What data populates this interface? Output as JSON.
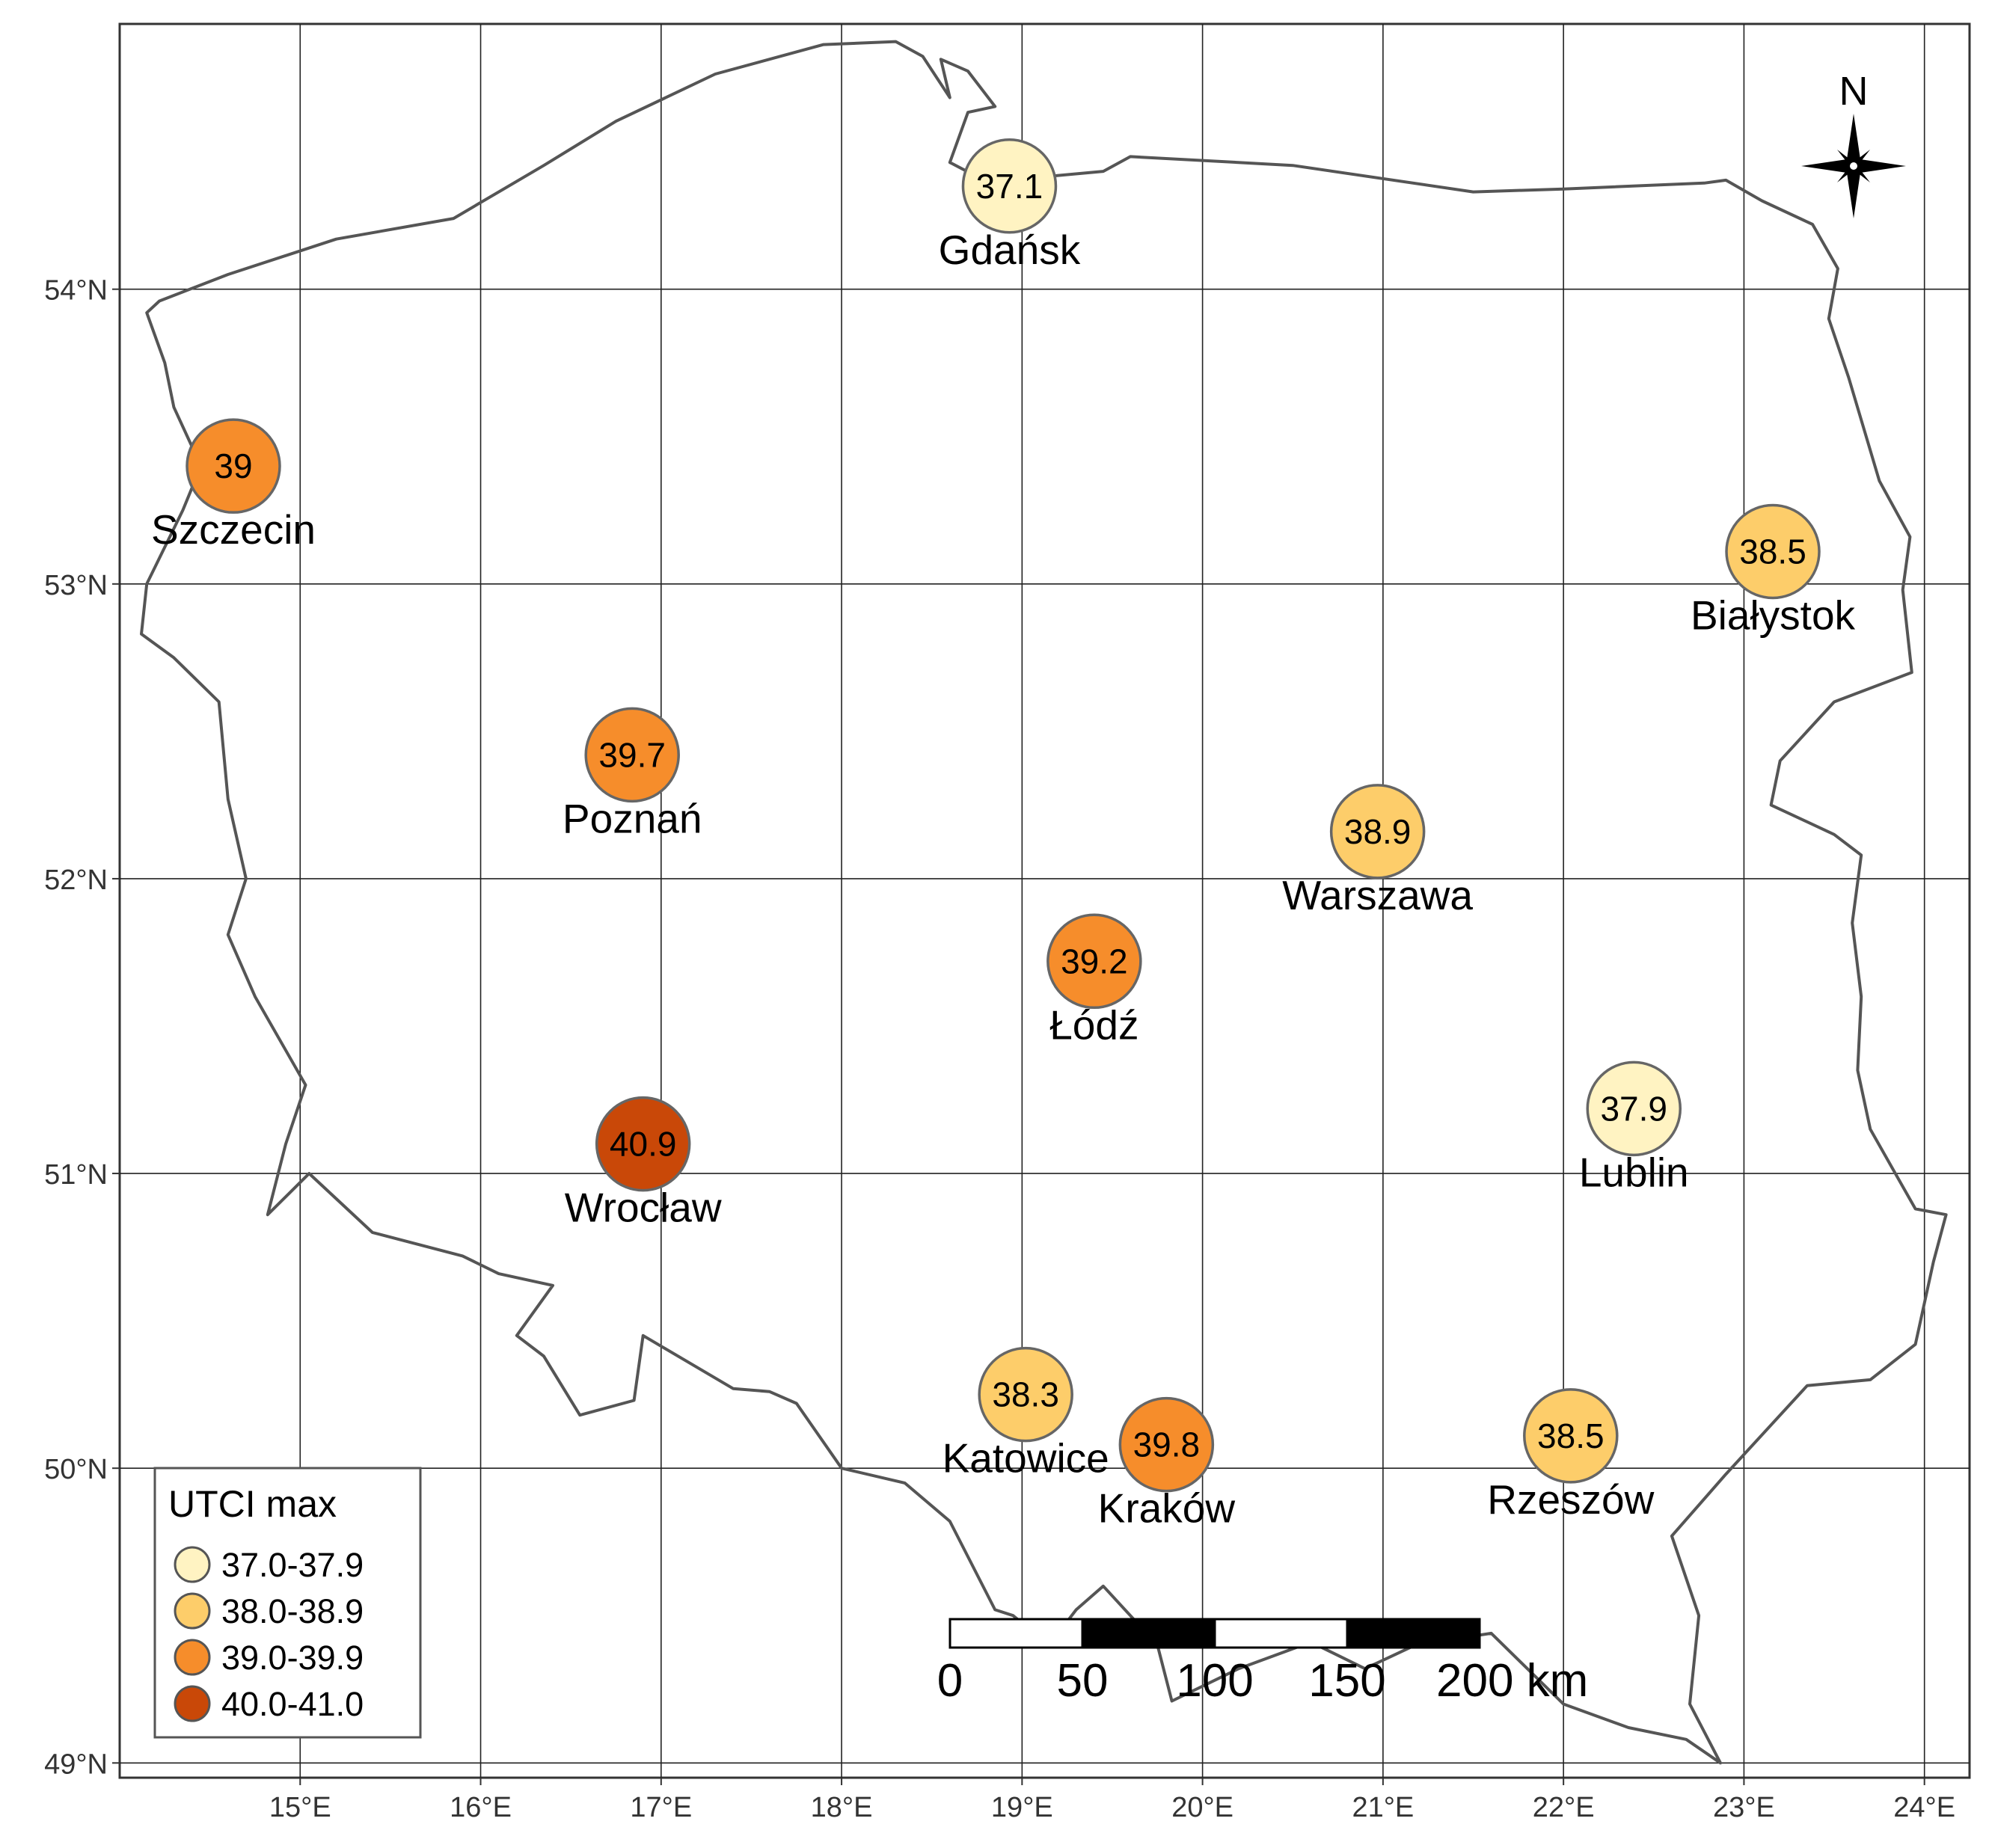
{
  "map": {
    "lon_range": [
      14.0,
      24.25
    ],
    "lat_range": [
      48.95,
      54.9
    ],
    "x_ticks": [
      {
        "lon": 15,
        "label": "15°E"
      },
      {
        "lon": 16,
        "label": "16°E"
      },
      {
        "lon": 17,
        "label": "17°E"
      },
      {
        "lon": 18,
        "label": "18°E"
      },
      {
        "lon": 19,
        "label": "19°E"
      },
      {
        "lon": 20,
        "label": "20°E"
      },
      {
        "lon": 21,
        "label": "21°E"
      },
      {
        "lon": 22,
        "label": "22°E"
      },
      {
        "lon": 23,
        "label": "23°E"
      },
      {
        "lon": 24,
        "label": "24°E"
      }
    ],
    "y_ticks": [
      {
        "lat": 49,
        "label": "49°N"
      },
      {
        "lat": 50,
        "label": "50°N"
      },
      {
        "lat": 51,
        "label": "51°N"
      },
      {
        "lat": 52,
        "label": "52°N"
      },
      {
        "lat": 53,
        "label": "53°N"
      },
      {
        "lat": 54,
        "label": "54°N"
      }
    ],
    "grid": true,
    "border_color": "#555555"
  },
  "classes": [
    {
      "label": "37.0-37.9",
      "color": "#fff3c2"
    },
    {
      "label": "38.0-38.9",
      "color": "#fdcd6a"
    },
    {
      "label": "39.0-39.9",
      "color": "#f68d2b"
    },
    {
      "label": "40.0-41.0",
      "color": "#c94808"
    }
  ],
  "cities": [
    {
      "name": "Gdańsk",
      "value": "37.1",
      "lon": 18.93,
      "lat": 54.35,
      "class": 0
    },
    {
      "name": "Szczecin",
      "value": "39",
      "lon": 14.63,
      "lat": 53.4,
      "class": 2
    },
    {
      "name": "Białystok",
      "value": "38.5",
      "lon": 23.16,
      "lat": 53.11,
      "class": 1
    },
    {
      "name": "Poznań",
      "value": "39.7",
      "lon": 16.84,
      "lat": 52.42,
      "class": 2
    },
    {
      "name": "Warszawa",
      "value": "38.9",
      "lon": 20.97,
      "lat": 52.16,
      "class": 1
    },
    {
      "name": "Łódź",
      "value": "39.2",
      "lon": 19.4,
      "lat": 51.72,
      "class": 2
    },
    {
      "name": "Lublin",
      "value": "37.9",
      "lon": 22.39,
      "lat": 51.22,
      "class": 0
    },
    {
      "name": "Wrocław",
      "value": "40.9",
      "lon": 16.9,
      "lat": 51.1,
      "class": 3
    },
    {
      "name": "Katowice",
      "value": "38.3",
      "lon": 19.02,
      "lat": 50.25,
      "class": 1
    },
    {
      "name": "Kraków",
      "value": "39.8",
      "lon": 19.8,
      "lat": 50.08,
      "class": 2
    },
    {
      "name": "Rzeszów",
      "value": "38.5",
      "lon": 22.04,
      "lat": 50.11,
      "class": 1
    }
  ],
  "legend": {
    "title": "UTCI max",
    "position": "bottom-left"
  },
  "scalebar": {
    "labels": [
      "0",
      "50",
      "100",
      "150",
      "200 km"
    ]
  },
  "north_arrow": {
    "label": "N"
  },
  "border": [
    [
      14.15,
      53.92
    ],
    [
      14.22,
      53.96
    ],
    [
      14.6,
      54.05
    ],
    [
      15.2,
      54.17
    ],
    [
      15.85,
      54.24
    ],
    [
      16.35,
      54.42
    ],
    [
      16.75,
      54.57
    ],
    [
      17.3,
      54.73
    ],
    [
      17.9,
      54.83
    ],
    [
      18.3,
      54.84
    ],
    [
      18.45,
      54.79
    ],
    [
      18.6,
      54.65
    ],
    [
      18.55,
      54.78
    ],
    [
      18.7,
      54.74
    ],
    [
      18.85,
      54.62
    ],
    [
      18.7,
      54.6
    ],
    [
      18.6,
      54.43
    ],
    [
      18.85,
      54.35
    ],
    [
      19.1,
      54.38
    ],
    [
      19.45,
      54.4
    ],
    [
      19.6,
      54.45
    ],
    [
      20.5,
      54.42
    ],
    [
      21.5,
      54.33
    ],
    [
      22.0,
      54.34
    ],
    [
      22.78,
      54.36
    ],
    [
      22.9,
      54.37
    ],
    [
      23.1,
      54.3
    ],
    [
      23.38,
      54.22
    ],
    [
      23.52,
      54.07
    ],
    [
      23.47,
      53.9
    ],
    [
      23.58,
      53.7
    ],
    [
      23.75,
      53.35
    ],
    [
      23.92,
      53.16
    ],
    [
      23.88,
      52.98
    ],
    [
      23.93,
      52.7
    ],
    [
      23.5,
      52.6
    ],
    [
      23.2,
      52.4
    ],
    [
      23.15,
      52.25
    ],
    [
      23.5,
      52.15
    ],
    [
      23.65,
      52.08
    ],
    [
      23.6,
      51.85
    ],
    [
      23.65,
      51.6
    ],
    [
      23.63,
      51.35
    ],
    [
      23.7,
      51.15
    ],
    [
      23.95,
      50.88
    ],
    [
      24.12,
      50.86
    ],
    [
      24.05,
      50.7
    ],
    [
      23.95,
      50.42
    ],
    [
      23.7,
      50.3
    ],
    [
      23.35,
      50.28
    ],
    [
      22.9,
      49.98
    ],
    [
      22.6,
      49.77
    ],
    [
      22.75,
      49.5
    ],
    [
      22.7,
      49.2
    ],
    [
      22.87,
      49.0
    ],
    [
      22.68,
      49.08
    ],
    [
      22.36,
      49.12
    ],
    [
      22.0,
      49.2
    ],
    [
      21.6,
      49.44
    ],
    [
      21.18,
      49.4
    ],
    [
      20.9,
      49.32
    ],
    [
      20.6,
      49.41
    ],
    [
      20.2,
      49.32
    ],
    [
      19.83,
      49.21
    ],
    [
      19.75,
      49.4
    ],
    [
      19.45,
      49.6
    ],
    [
      19.3,
      49.52
    ],
    [
      19.15,
      49.4
    ],
    [
      18.95,
      49.5
    ],
    [
      18.85,
      49.52
    ],
    [
      18.6,
      49.82
    ],
    [
      18.35,
      49.95
    ],
    [
      18.0,
      50.0
    ],
    [
      17.75,
      50.22
    ],
    [
      17.6,
      50.26
    ],
    [
      17.4,
      50.27
    ],
    [
      16.9,
      50.45
    ],
    [
      16.85,
      50.23
    ],
    [
      16.55,
      50.18
    ],
    [
      16.35,
      50.38
    ],
    [
      16.2,
      50.45
    ],
    [
      16.4,
      50.62
    ],
    [
      16.1,
      50.66
    ],
    [
      15.9,
      50.72
    ],
    [
      15.4,
      50.8
    ],
    [
      15.05,
      51.0
    ],
    [
      14.82,
      50.86
    ],
    [
      14.92,
      51.1
    ],
    [
      15.03,
      51.3
    ],
    [
      14.75,
      51.6
    ],
    [
      14.6,
      51.81
    ],
    [
      14.7,
      52.0
    ],
    [
      14.6,
      52.27
    ],
    [
      14.55,
      52.6
    ],
    [
      14.3,
      52.75
    ],
    [
      14.12,
      52.83
    ],
    [
      14.15,
      53.0
    ],
    [
      14.35,
      53.25
    ],
    [
      14.45,
      53.4
    ],
    [
      14.3,
      53.6
    ],
    [
      14.25,
      53.75
    ],
    [
      14.15,
      53.92
    ]
  ]
}
